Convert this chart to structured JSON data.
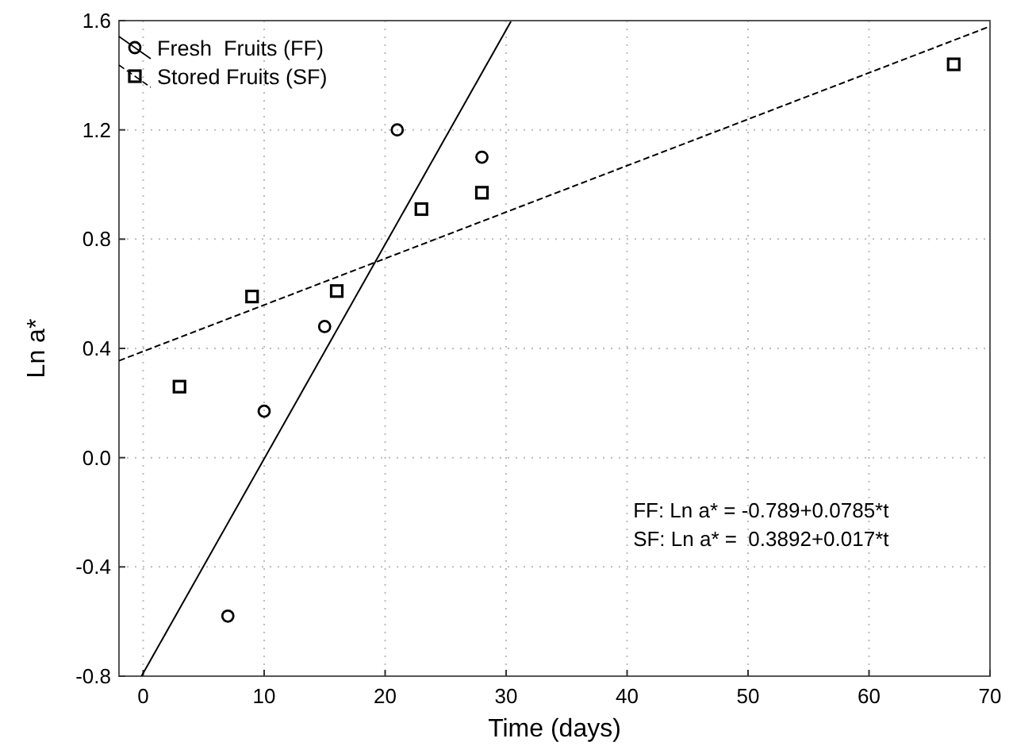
{
  "chart_data": {
    "type": "scatter",
    "xlabel": "Time (days)",
    "ylabel": "Ln a*",
    "xlim": [
      -2,
      70
    ],
    "xticks": [
      0,
      10,
      20,
      30,
      40,
      50,
      60,
      70
    ],
    "ylim": [
      -0.8,
      1.6
    ],
    "yticks": [
      -0.8,
      -0.4,
      {
        "value": 0,
        "label": "0.0"
      },
      0.4,
      0.8,
      1.2,
      1.6
    ],
    "grid": true,
    "legend": "top left",
    "annotations": [
      "FF: Ln a* = -0.789+0.0785*t",
      "SF: Ln a* =  0.3892+0.017*t"
    ],
    "series": [
      {
        "name": "Fresh  Fruits (FF)",
        "color": "#000000",
        "marker": "circle",
        "x": [
          7,
          10,
          15,
          21,
          28
        ],
        "values": [
          -0.58,
          0.17,
          0.48,
          1.2,
          1.1
        ]
      },
      {
        "name": "Stored Fruits (SF)",
        "color": "#000000",
        "marker": "square",
        "x": [
          3,
          9,
          16,
          23,
          28,
          67
        ],
        "values": [
          0.26,
          0.59,
          0.61,
          0.91,
          0.97,
          1.44
        ]
      },
      {
        "type": "line",
        "color": "#000000",
        "line_style": "solid",
        "marker": "none",
        "x": [
          -0.14,
          30.4
        ],
        "values": [
          -0.8,
          1.597
        ]
      },
      {
        "type": "line",
        "color": "#000000",
        "line_style": "dashed",
        "marker": "none",
        "x": [
          -2,
          70
        ],
        "values": [
          0.355,
          1.579
        ]
      }
    ]
  }
}
